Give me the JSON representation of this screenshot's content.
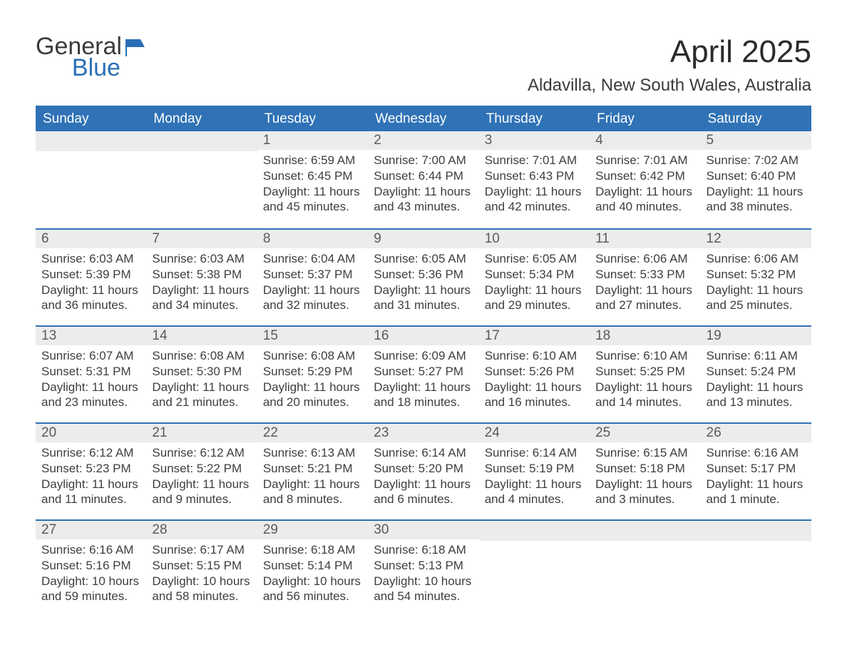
{
  "logo": {
    "word1": "General",
    "word2": "Blue"
  },
  "title": "April 2025",
  "location": "Aldavilla, New South Wales, Australia",
  "colors": {
    "header_bg": "#2f72b6",
    "header_text": "#ffffff",
    "band_bg": "#ececec",
    "rule": "#2f72b6",
    "text": "#3a3a3a",
    "logo_blue": "#2a6fb5"
  },
  "daysOfWeek": [
    "Sunday",
    "Monday",
    "Tuesday",
    "Wednesday",
    "Thursday",
    "Friday",
    "Saturday"
  ],
  "weeks": [
    [
      null,
      null,
      {
        "n": "1",
        "sunrise": "6:59 AM",
        "sunset": "6:45 PM",
        "daylight": "11 hours and 45 minutes."
      },
      {
        "n": "2",
        "sunrise": "7:00 AM",
        "sunset": "6:44 PM",
        "daylight": "11 hours and 43 minutes."
      },
      {
        "n": "3",
        "sunrise": "7:01 AM",
        "sunset": "6:43 PM",
        "daylight": "11 hours and 42 minutes."
      },
      {
        "n": "4",
        "sunrise": "7:01 AM",
        "sunset": "6:42 PM",
        "daylight": "11 hours and 40 minutes."
      },
      {
        "n": "5",
        "sunrise": "7:02 AM",
        "sunset": "6:40 PM",
        "daylight": "11 hours and 38 minutes."
      }
    ],
    [
      {
        "n": "6",
        "sunrise": "6:03 AM",
        "sunset": "5:39 PM",
        "daylight": "11 hours and 36 minutes."
      },
      {
        "n": "7",
        "sunrise": "6:03 AM",
        "sunset": "5:38 PM",
        "daylight": "11 hours and 34 minutes."
      },
      {
        "n": "8",
        "sunrise": "6:04 AM",
        "sunset": "5:37 PM",
        "daylight": "11 hours and 32 minutes."
      },
      {
        "n": "9",
        "sunrise": "6:05 AM",
        "sunset": "5:36 PM",
        "daylight": "11 hours and 31 minutes."
      },
      {
        "n": "10",
        "sunrise": "6:05 AM",
        "sunset": "5:34 PM",
        "daylight": "11 hours and 29 minutes."
      },
      {
        "n": "11",
        "sunrise": "6:06 AM",
        "sunset": "5:33 PM",
        "daylight": "11 hours and 27 minutes."
      },
      {
        "n": "12",
        "sunrise": "6:06 AM",
        "sunset": "5:32 PM",
        "daylight": "11 hours and 25 minutes."
      }
    ],
    [
      {
        "n": "13",
        "sunrise": "6:07 AM",
        "sunset": "5:31 PM",
        "daylight": "11 hours and 23 minutes."
      },
      {
        "n": "14",
        "sunrise": "6:08 AM",
        "sunset": "5:30 PM",
        "daylight": "11 hours and 21 minutes."
      },
      {
        "n": "15",
        "sunrise": "6:08 AM",
        "sunset": "5:29 PM",
        "daylight": "11 hours and 20 minutes."
      },
      {
        "n": "16",
        "sunrise": "6:09 AM",
        "sunset": "5:27 PM",
        "daylight": "11 hours and 18 minutes."
      },
      {
        "n": "17",
        "sunrise": "6:10 AM",
        "sunset": "5:26 PM",
        "daylight": "11 hours and 16 minutes."
      },
      {
        "n": "18",
        "sunrise": "6:10 AM",
        "sunset": "5:25 PM",
        "daylight": "11 hours and 14 minutes."
      },
      {
        "n": "19",
        "sunrise": "6:11 AM",
        "sunset": "5:24 PM",
        "daylight": "11 hours and 13 minutes."
      }
    ],
    [
      {
        "n": "20",
        "sunrise": "6:12 AM",
        "sunset": "5:23 PM",
        "daylight": "11 hours and 11 minutes."
      },
      {
        "n": "21",
        "sunrise": "6:12 AM",
        "sunset": "5:22 PM",
        "daylight": "11 hours and 9 minutes."
      },
      {
        "n": "22",
        "sunrise": "6:13 AM",
        "sunset": "5:21 PM",
        "daylight": "11 hours and 8 minutes."
      },
      {
        "n": "23",
        "sunrise": "6:14 AM",
        "sunset": "5:20 PM",
        "daylight": "11 hours and 6 minutes."
      },
      {
        "n": "24",
        "sunrise": "6:14 AM",
        "sunset": "5:19 PM",
        "daylight": "11 hours and 4 minutes."
      },
      {
        "n": "25",
        "sunrise": "6:15 AM",
        "sunset": "5:18 PM",
        "daylight": "11 hours and 3 minutes."
      },
      {
        "n": "26",
        "sunrise": "6:16 AM",
        "sunset": "5:17 PM",
        "daylight": "11 hours and 1 minute."
      }
    ],
    [
      {
        "n": "27",
        "sunrise": "6:16 AM",
        "sunset": "5:16 PM",
        "daylight": "10 hours and 59 minutes."
      },
      {
        "n": "28",
        "sunrise": "6:17 AM",
        "sunset": "5:15 PM",
        "daylight": "10 hours and 58 minutes."
      },
      {
        "n": "29",
        "sunrise": "6:18 AM",
        "sunset": "5:14 PM",
        "daylight": "10 hours and 56 minutes."
      },
      {
        "n": "30",
        "sunrise": "6:18 AM",
        "sunset": "5:13 PM",
        "daylight": "10 hours and 54 minutes."
      },
      null,
      null,
      null
    ]
  ],
  "labels": {
    "sunrise": "Sunrise: ",
    "sunset": "Sunset: ",
    "daylight": "Daylight: "
  }
}
